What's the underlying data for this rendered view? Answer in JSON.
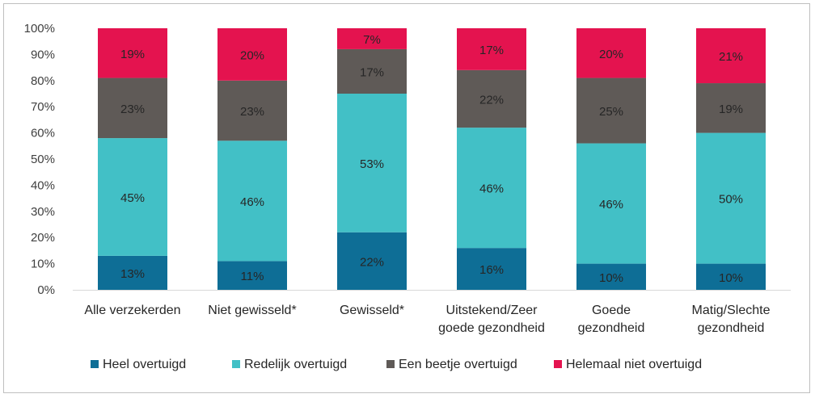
{
  "chart_data": {
    "type": "bar",
    "stacked": true,
    "ylim": [
      0,
      100
    ],
    "yticks": [
      "0%",
      "10%",
      "20%",
      "30%",
      "40%",
      "50%",
      "60%",
      "70%",
      "80%",
      "90%",
      "100%"
    ],
    "grid": false,
    "legend_position": "bottom",
    "categories": [
      [
        "Alle verzekerden"
      ],
      [
        "Niet gewisseld*"
      ],
      [
        "Gewisseld*"
      ],
      [
        "Uitstekend/Zeer",
        "goede gezondheid"
      ],
      [
        "Goede",
        "gezondheid"
      ],
      [
        "Matig/Slechte",
        "gezondheid"
      ]
    ],
    "series": [
      {
        "name": "Heel overtuigd",
        "color": "#0e6e96",
        "values": [
          13,
          11,
          22,
          16,
          10,
          10
        ],
        "labels": [
          "13%",
          "11%",
          "22%",
          "16%",
          "10%",
          "10%"
        ]
      },
      {
        "name": "Redelijk overtuigd",
        "color": "#42c0c6",
        "values": [
          45,
          46,
          53,
          46,
          46,
          50
        ],
        "labels": [
          "45%",
          "46%",
          "53%",
          "46%",
          "46%",
          "50%"
        ]
      },
      {
        "name": "Een beetje overtuigd",
        "color": "#5f5a57",
        "values": [
          23,
          23,
          17,
          22,
          25,
          19
        ],
        "labels": [
          "23%",
          "23%",
          "17%",
          "22%",
          "25%",
          "19%"
        ]
      },
      {
        "name": "Helemaal niet overtuigd",
        "color": "#e4134f",
        "values": [
          19,
          20,
          7,
          17,
          20,
          21
        ],
        "labels": [
          "19%",
          "20%",
          "7%",
          "17%",
          "20%",
          "21%"
        ]
      }
    ]
  }
}
